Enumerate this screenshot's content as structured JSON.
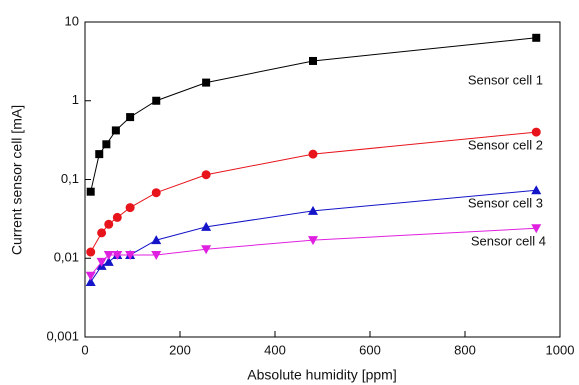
{
  "chart_data": {
    "type": "line",
    "x_label": "Absolute humidity [ppm]",
    "y_label": "Current sensor cell [mA]",
    "xlim": [
      0,
      1000
    ],
    "xticks": [
      0,
      200,
      400,
      600,
      800,
      1000
    ],
    "ylim": [
      0.001,
      10
    ],
    "ylog": true,
    "yticks": [
      {
        "value": 0.001,
        "label": "0,001"
      },
      {
        "value": 0.01,
        "label": "0,01"
      },
      {
        "value": 0.1,
        "label": "0,1"
      },
      1,
      10
    ],
    "series": [
      {
        "name": "Sensor cell 1",
        "color": "#000000",
        "marker": "square",
        "x": [
          12,
          30,
          45,
          65,
          95,
          150,
          255,
          480,
          950
        ],
        "values": [
          0.07,
          0.21,
          0.28,
          0.42,
          0.62,
          1.0,
          1.7,
          3.2,
          6.3
        ]
      },
      {
        "name": "Sensor cell 2",
        "color": "#e8141c",
        "marker": "circle",
        "x": [
          12,
          35,
          50,
          68,
          95,
          150,
          255,
          480,
          950
        ],
        "values": [
          0.012,
          0.021,
          0.027,
          0.033,
          0.044,
          0.068,
          0.115,
          0.21,
          0.4
        ]
      },
      {
        "name": "Sensor cell 3",
        "color": "#1414c8",
        "marker": "triangle-up",
        "x": [
          12,
          35,
          50,
          68,
          95,
          150,
          255,
          480,
          950
        ],
        "values": [
          0.005,
          0.008,
          0.009,
          0.011,
          0.011,
          0.017,
          0.025,
          0.04,
          0.073
        ]
      },
      {
        "name": "Sensor cell 4",
        "color": "#e020e0",
        "marker": "triangle-down",
        "x": [
          12,
          35,
          50,
          68,
          95,
          150,
          255,
          480,
          950
        ],
        "values": [
          0.006,
          0.009,
          0.011,
          0.011,
          0.011,
          0.011,
          0.013,
          0.017,
          0.024
        ]
      }
    ]
  }
}
